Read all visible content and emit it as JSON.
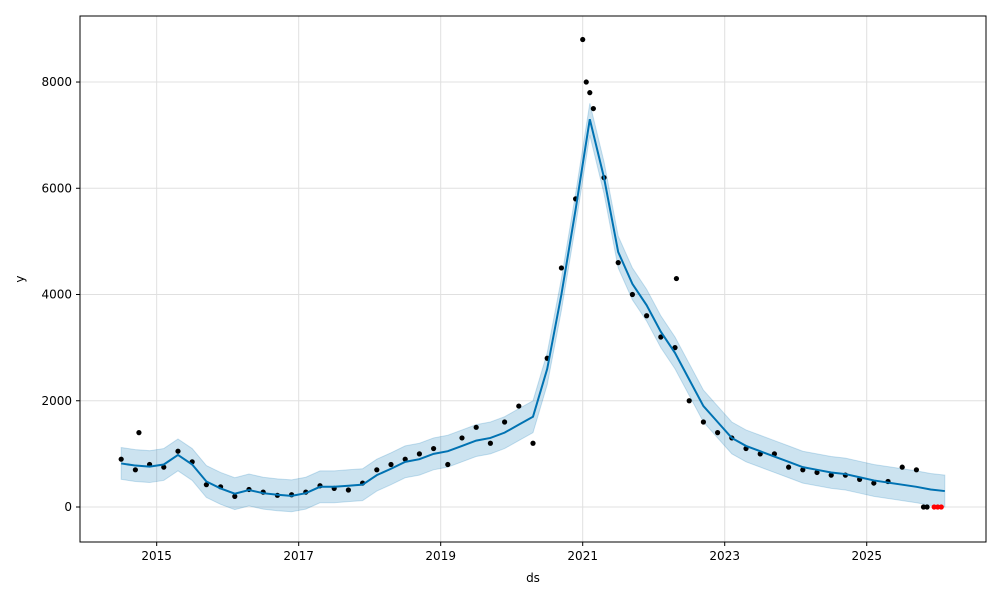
{
  "chart_data": {
    "type": "forecast",
    "xlabel": "ds",
    "ylabel": "y",
    "xlim": [
      2013.92,
      2026.68
    ],
    "ylim": [
      -659,
      9243
    ],
    "xticks": [
      2015,
      2017,
      2019,
      2021,
      2023,
      2025
    ],
    "yticks": [
      0,
      2000,
      4000,
      6000,
      8000
    ],
    "grid": true,
    "forecast": {
      "color": "#0072B2",
      "x": [
        2014.5,
        2014.7,
        2014.9,
        2015.1,
        2015.3,
        2015.5,
        2015.7,
        2015.9,
        2016.1,
        2016.3,
        2016.5,
        2016.7,
        2016.9,
        2017.1,
        2017.3,
        2017.5,
        2017.7,
        2017.9,
        2018.1,
        2018.3,
        2018.5,
        2018.7,
        2018.9,
        2019.1,
        2019.3,
        2019.5,
        2019.7,
        2019.9,
        2020.1,
        2020.3,
        2020.5,
        2020.7,
        2020.9,
        2021.1,
        2021.3,
        2021.5,
        2021.7,
        2021.9,
        2022.1,
        2022.3,
        2022.5,
        2022.7,
        2022.9,
        2023.1,
        2023.3,
        2023.5,
        2023.7,
        2023.9,
        2024.1,
        2024.3,
        2024.5,
        2024.7,
        2024.9,
        2025.1,
        2025.3,
        2025.5,
        2025.7,
        2025.9,
        2026.1
      ],
      "yhat": [
        820,
        780,
        760,
        800,
        980,
        800,
        480,
        350,
        250,
        320,
        260,
        230,
        210,
        260,
        380,
        380,
        400,
        420,
        600,
        720,
        850,
        900,
        1000,
        1050,
        1150,
        1250,
        1300,
        1400,
        1550,
        1700,
        2600,
        4000,
        5600,
        7300,
        6200,
        4800,
        4200,
        3800,
        3300,
        2900,
        2400,
        1900,
        1600,
        1300,
        1150,
        1050,
        950,
        850,
        750,
        700,
        650,
        620,
        560,
        500,
        460,
        420,
        380,
        330,
        300
      ],
      "yhat_lower": [
        520,
        480,
        460,
        500,
        680,
        500,
        180,
        50,
        -50,
        20,
        -40,
        -70,
        -90,
        -40,
        80,
        80,
        100,
        120,
        300,
        420,
        550,
        600,
        700,
        750,
        850,
        950,
        1000,
        1100,
        1250,
        1400,
        2300,
        3700,
        5300,
        7000,
        5900,
        4500,
        3900,
        3500,
        3000,
        2600,
        2100,
        1600,
        1300,
        1000,
        850,
        750,
        650,
        550,
        450,
        400,
        350,
        320,
        260,
        200,
        160,
        120,
        80,
        30,
        0
      ],
      "yhat_upper": [
        1120,
        1080,
        1060,
        1100,
        1280,
        1100,
        780,
        650,
        550,
        620,
        560,
        530,
        510,
        560,
        680,
        680,
        700,
        720,
        900,
        1020,
        1150,
        1200,
        1300,
        1350,
        1450,
        1550,
        1600,
        1700,
        1850,
        2000,
        2900,
        4300,
        5900,
        7600,
        6500,
        5100,
        4500,
        4100,
        3600,
        3200,
        2700,
        2200,
        1900,
        1600,
        1450,
        1350,
        1250,
        1150,
        1050,
        1000,
        950,
        920,
        860,
        800,
        760,
        720,
        680,
        630,
        600
      ]
    },
    "observed": {
      "color": "#000000",
      "x": [
        2014.5,
        2014.7,
        2014.75,
        2014.9,
        2015.1,
        2015.3,
        2015.5,
        2015.7,
        2015.9,
        2016.1,
        2016.3,
        2016.5,
        2016.7,
        2016.9,
        2017.1,
        2017.3,
        2017.5,
        2017.7,
        2017.9,
        2018.1,
        2018.3,
        2018.5,
        2018.7,
        2018.9,
        2019.1,
        2019.3,
        2019.5,
        2019.7,
        2019.9,
        2020.1,
        2020.3,
        2020.5,
        2020.7,
        2020.9,
        2021.0,
        2021.05,
        2021.1,
        2021.15,
        2021.3,
        2021.5,
        2021.7,
        2021.9,
        2022.1,
        2022.3,
        2022.32,
        2022.5,
        2022.7,
        2022.9,
        2023.1,
        2023.3,
        2023.5,
        2023.7,
        2023.9,
        2024.1,
        2024.3,
        2024.5,
        2024.7,
        2024.9,
        2025.1,
        2025.3,
        2025.5,
        2025.7,
        2025.8,
        2025.85
      ],
      "y": [
        900,
        700,
        1400,
        800,
        750,
        1050,
        850,
        420,
        380,
        200,
        330,
        280,
        220,
        230,
        280,
        400,
        350,
        320,
        450,
        700,
        800,
        900,
        1000,
        1100,
        800,
        1300,
        1500,
        1200,
        1600,
        1900,
        1200,
        2800,
        4500,
        5800,
        8800,
        8000,
        7800,
        7500,
        6200,
        4600,
        4000,
        3600,
        3200,
        3000,
        4300,
        2000,
        1600,
        1400,
        1300,
        1100,
        1000,
        1000,
        750,
        700,
        650,
        600,
        600,
        520,
        450,
        480,
        750,
        700,
        0,
        0
      ]
    },
    "actual_future": {
      "color": "#ff0000",
      "x": [
        2025.95,
        2026.0,
        2026.05
      ],
      "y": [
        0,
        0,
        0
      ]
    }
  }
}
